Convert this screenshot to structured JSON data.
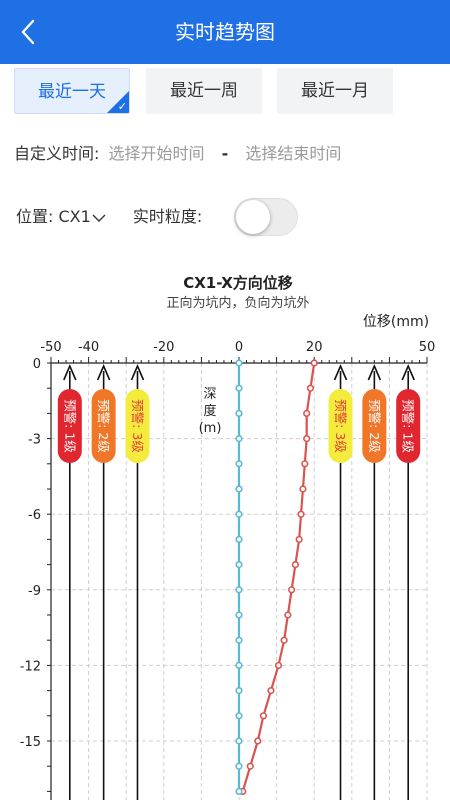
{
  "header": {
    "title": "实时趋势图",
    "back_icon": "chevron-left-icon"
  },
  "tabs": [
    {
      "label": "最近一天",
      "active": true
    },
    {
      "label": "最近一周",
      "active": false
    },
    {
      "label": "最近一月",
      "active": false
    }
  ],
  "custom_time": {
    "label": "自定义时间:",
    "start_placeholder": "选择开始时间",
    "separator": "-",
    "end_placeholder": "选择结束时间"
  },
  "filters": {
    "position_label": "位置:",
    "position_value": "CX1",
    "granularity_label": "实时粒度:",
    "granularity_on": false
  },
  "chart_data": {
    "type": "line",
    "title": "CX1-X方向位移",
    "subtitle": "正向为坑内，负向为坑外",
    "xlabel": "位移(mm)",
    "ylabel": "深度(m)",
    "xlim": [
      -50,
      50
    ],
    "x_ticks": [
      -50,
      -40,
      -20,
      0,
      20,
      50
    ],
    "ylim": [
      0,
      -17
    ],
    "y_ticks": [
      0,
      -3,
      -6,
      -9,
      -12,
      -15
    ],
    "grid": true,
    "series": [
      {
        "color": "#d9534f",
        "points": [
          [
            20,
            0
          ],
          [
            19,
            -1
          ],
          [
            18,
            -2
          ],
          [
            18,
            -3
          ],
          [
            17.5,
            -4
          ],
          [
            17,
            -5
          ],
          [
            16.5,
            -6
          ],
          [
            16,
            -7
          ],
          [
            15,
            -8
          ],
          [
            14,
            -9
          ],
          [
            13,
            -10
          ],
          [
            12,
            -11
          ],
          [
            10.5,
            -12
          ],
          [
            8.5,
            -13
          ],
          [
            6.5,
            -14
          ],
          [
            5,
            -15
          ],
          [
            3,
            -16
          ],
          [
            1,
            -17
          ]
        ]
      },
      {
        "color": "#5bb8d4",
        "points": [
          [
            0,
            0
          ],
          [
            0,
            -1
          ],
          [
            0,
            -2
          ],
          [
            0,
            -3
          ],
          [
            0,
            -4
          ],
          [
            0,
            -5
          ],
          [
            0,
            -6
          ],
          [
            0,
            -7
          ],
          [
            0,
            -8
          ],
          [
            0,
            -9
          ],
          [
            0,
            -10
          ],
          [
            0,
            -11
          ],
          [
            0,
            -12
          ],
          [
            0,
            -13
          ],
          [
            0,
            -14
          ],
          [
            0,
            -15
          ],
          [
            0,
            -16
          ],
          [
            0,
            -17
          ]
        ]
      }
    ],
    "thresholds": [
      {
        "x": -45,
        "label": "预警: 1级",
        "color": "#e0262f",
        "text_color": "#ffffff"
      },
      {
        "x": -36,
        "label": "预警: 2级",
        "color": "#f07628",
        "text_color": "#ffffff"
      },
      {
        "x": -27,
        "label": "预警: 3级",
        "color": "#f4ec3c",
        "text_color": "#e33b3b"
      },
      {
        "x": 27,
        "label": "预警: 3级",
        "color": "#f4ec3c",
        "text_color": "#e33b3b"
      },
      {
        "x": 36,
        "label": "预警: 2级",
        "color": "#f07628",
        "text_color": "#ffffff"
      },
      {
        "x": 45,
        "label": "预警: 1级",
        "color": "#e0262f",
        "text_color": "#ffffff"
      }
    ]
  }
}
